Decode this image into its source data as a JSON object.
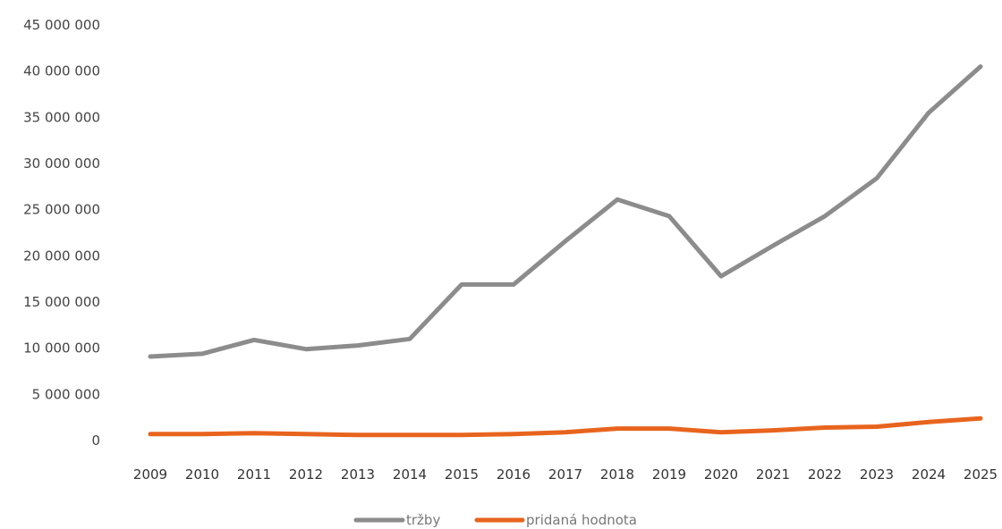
{
  "chart_data": {
    "type": "line",
    "categories": [
      "2009",
      "2010",
      "2011",
      "2012",
      "2013",
      "2014",
      "2015",
      "2016",
      "2017",
      "2018",
      "2019",
      "2020",
      "2021",
      "2022",
      "2023",
      "2024",
      "2025"
    ],
    "series": [
      {
        "name": "tržby",
        "color": "#8c8c8c",
        "values": [
          9100000,
          9400000,
          10900000,
          9900000,
          10300000,
          11000000,
          16900000,
          16900000,
          21600000,
          26100000,
          24300000,
          17800000,
          21100000,
          24300000,
          28400000,
          35500000,
          40500000
        ]
      },
      {
        "name": "pridaná hodnota",
        "color": "#e8641e",
        "values": [
          700000,
          700000,
          800000,
          700000,
          600000,
          600000,
          600000,
          700000,
          900000,
          1300000,
          1300000,
          900000,
          1100000,
          1400000,
          1500000,
          2000000,
          2400000
        ]
      }
    ],
    "ylim": [
      0,
      45000000
    ],
    "ytick_values": [
      0,
      5000000,
      10000000,
      15000000,
      20000000,
      25000000,
      30000000,
      35000000,
      40000000,
      45000000
    ],
    "ytick_labels": [
      "0",
      "5 000 000",
      "10 000 000",
      "15 000 000",
      "20 000 000",
      "25 000 000",
      "30 000 000",
      "35 000 000",
      "40 000 000",
      "45 000 000"
    ],
    "grid": false,
    "legend_position": "bottom"
  }
}
